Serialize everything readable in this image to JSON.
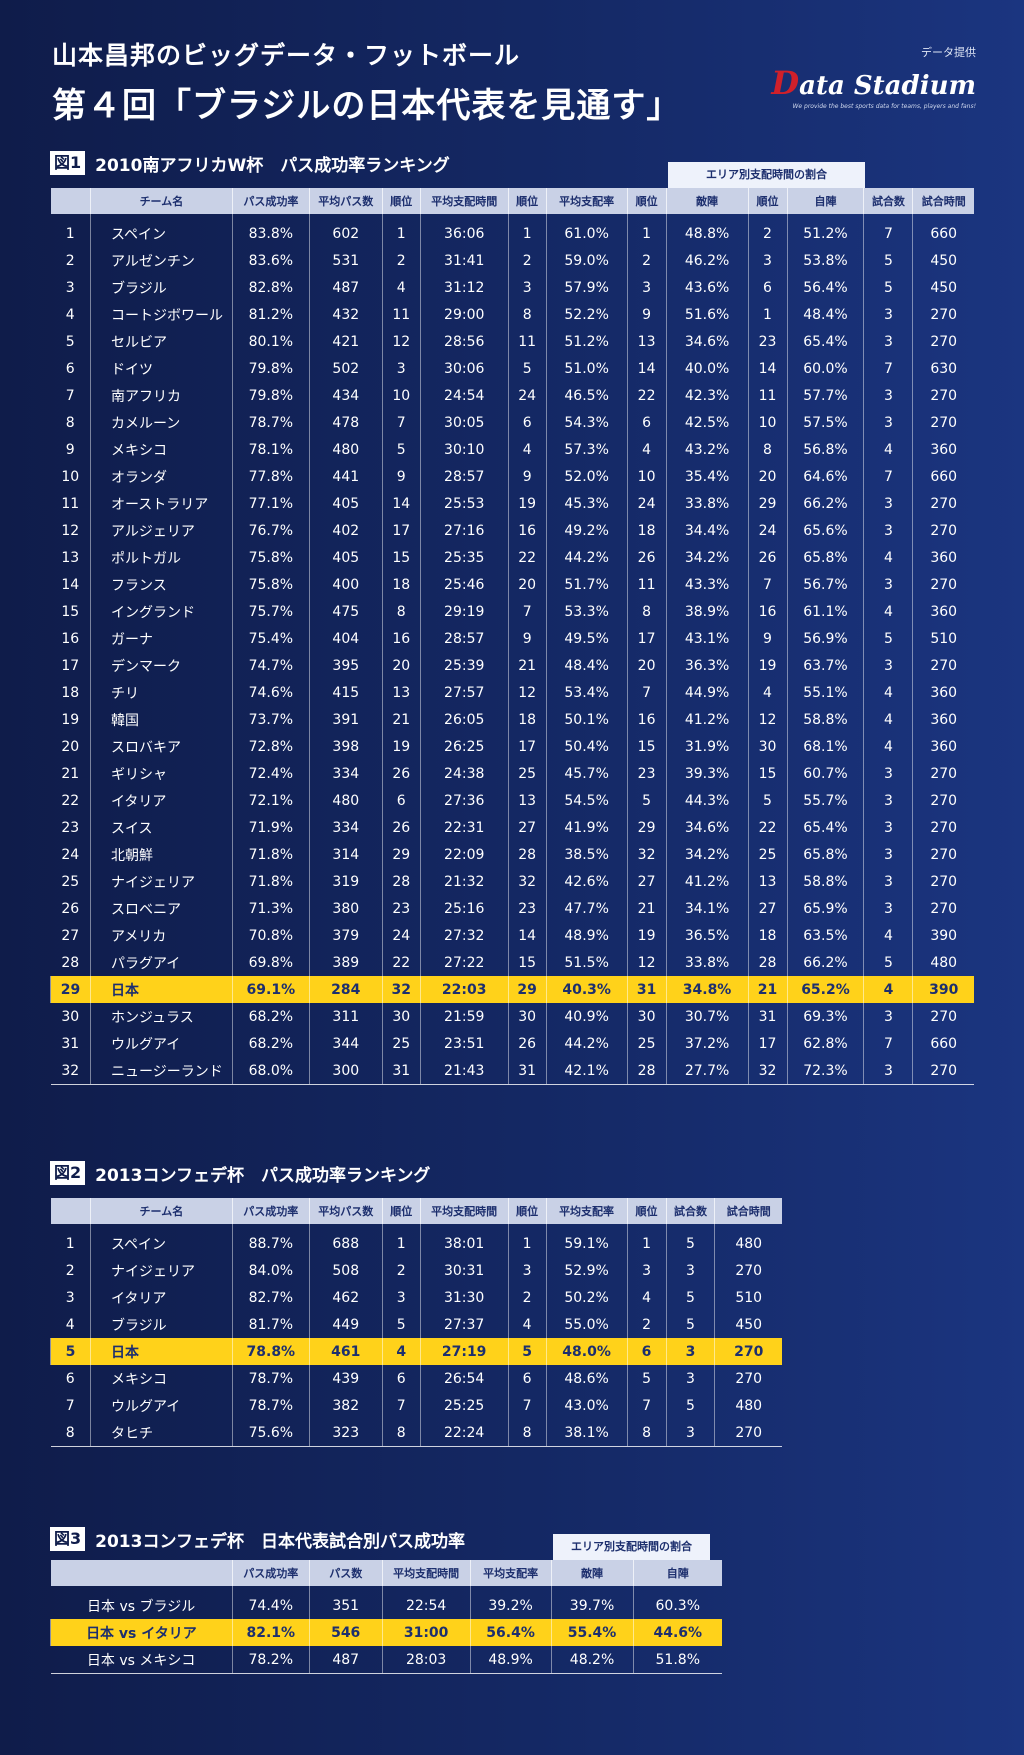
{
  "header": {
    "subtitle": "山本昌邦のビッグデータ・フットボール",
    "title": "第４回「ブラジルの日本代表を見通す」",
    "provider_label": "データ提供",
    "logo_initial": "D",
    "logo_rest": "ata Stadium",
    "logo_tagline": "We provide the best sports data for teams, players and fans!"
  },
  "fig1": {
    "badge": "図1",
    "title": "2010南アフリカW杯　パス成功率ランキング",
    "area_header": "エリア別支配時間の割合",
    "columns": [
      "",
      "チーム名",
      "パス成功率",
      "平均パス数",
      "順位",
      "平均支配時間",
      "順位",
      "平均支配率",
      "順位",
      "敵陣",
      "順位",
      "自陣",
      "試合数",
      "試合時間"
    ],
    "rows": [
      [
        "1",
        "スペイン",
        "83.8%",
        "602",
        "1",
        "36:06",
        "1",
        "61.0%",
        "1",
        "48.8%",
        "2",
        "51.2%",
        "7",
        "660"
      ],
      [
        "2",
        "アルゼンチン",
        "83.6%",
        "531",
        "2",
        "31:41",
        "2",
        "59.0%",
        "2",
        "46.2%",
        "3",
        "53.8%",
        "5",
        "450"
      ],
      [
        "3",
        "ブラジル",
        "82.8%",
        "487",
        "4",
        "31:12",
        "3",
        "57.9%",
        "3",
        "43.6%",
        "6",
        "56.4%",
        "5",
        "450"
      ],
      [
        "4",
        "コートジボワール",
        "81.2%",
        "432",
        "11",
        "29:00",
        "8",
        "52.2%",
        "9",
        "51.6%",
        "1",
        "48.4%",
        "3",
        "270"
      ],
      [
        "5",
        "セルビア",
        "80.1%",
        "421",
        "12",
        "28:56",
        "11",
        "51.2%",
        "13",
        "34.6%",
        "23",
        "65.4%",
        "3",
        "270"
      ],
      [
        "6",
        "ドイツ",
        "79.8%",
        "502",
        "3",
        "30:06",
        "5",
        "51.0%",
        "14",
        "40.0%",
        "14",
        "60.0%",
        "7",
        "630"
      ],
      [
        "7",
        "南アフリカ",
        "79.8%",
        "434",
        "10",
        "24:54",
        "24",
        "46.5%",
        "22",
        "42.3%",
        "11",
        "57.7%",
        "3",
        "270"
      ],
      [
        "8",
        "カメルーン",
        "78.7%",
        "478",
        "7",
        "30:05",
        "6",
        "54.3%",
        "6",
        "42.5%",
        "10",
        "57.5%",
        "3",
        "270"
      ],
      [
        "9",
        "メキシコ",
        "78.1%",
        "480",
        "5",
        "30:10",
        "4",
        "57.3%",
        "4",
        "43.2%",
        "8",
        "56.8%",
        "4",
        "360"
      ],
      [
        "10",
        "オランダ",
        "77.8%",
        "441",
        "9",
        "28:57",
        "9",
        "52.0%",
        "10",
        "35.4%",
        "20",
        "64.6%",
        "7",
        "660"
      ],
      [
        "11",
        "オーストラリア",
        "77.1%",
        "405",
        "14",
        "25:53",
        "19",
        "45.3%",
        "24",
        "33.8%",
        "29",
        "66.2%",
        "3",
        "270"
      ],
      [
        "12",
        "アルジェリア",
        "76.7%",
        "402",
        "17",
        "27:16",
        "16",
        "49.2%",
        "18",
        "34.4%",
        "24",
        "65.6%",
        "3",
        "270"
      ],
      [
        "13",
        "ポルトガル",
        "75.8%",
        "405",
        "15",
        "25:35",
        "22",
        "44.2%",
        "26",
        "34.2%",
        "26",
        "65.8%",
        "4",
        "360"
      ],
      [
        "14",
        "フランス",
        "75.8%",
        "400",
        "18",
        "25:46",
        "20",
        "51.7%",
        "11",
        "43.3%",
        "7",
        "56.7%",
        "3",
        "270"
      ],
      [
        "15",
        "イングランド",
        "75.7%",
        "475",
        "8",
        "29:19",
        "7",
        "53.3%",
        "8",
        "38.9%",
        "16",
        "61.1%",
        "4",
        "360"
      ],
      [
        "16",
        "ガーナ",
        "75.4%",
        "404",
        "16",
        "28:57",
        "9",
        "49.5%",
        "17",
        "43.1%",
        "9",
        "56.9%",
        "5",
        "510"
      ],
      [
        "17",
        "デンマーク",
        "74.7%",
        "395",
        "20",
        "25:39",
        "21",
        "48.4%",
        "20",
        "36.3%",
        "19",
        "63.7%",
        "3",
        "270"
      ],
      [
        "18",
        "チリ",
        "74.6%",
        "415",
        "13",
        "27:57",
        "12",
        "53.4%",
        "7",
        "44.9%",
        "4",
        "55.1%",
        "4",
        "360"
      ],
      [
        "19",
        "韓国",
        "73.7%",
        "391",
        "21",
        "26:05",
        "18",
        "50.1%",
        "16",
        "41.2%",
        "12",
        "58.8%",
        "4",
        "360"
      ],
      [
        "20",
        "スロバキア",
        "72.8%",
        "398",
        "19",
        "26:25",
        "17",
        "50.4%",
        "15",
        "31.9%",
        "30",
        "68.1%",
        "4",
        "360"
      ],
      [
        "21",
        "ギリシャ",
        "72.4%",
        "334",
        "26",
        "24:38",
        "25",
        "45.7%",
        "23",
        "39.3%",
        "15",
        "60.7%",
        "3",
        "270"
      ],
      [
        "22",
        "イタリア",
        "72.1%",
        "480",
        "6",
        "27:36",
        "13",
        "54.5%",
        "5",
        "44.3%",
        "5",
        "55.7%",
        "3",
        "270"
      ],
      [
        "23",
        "スイス",
        "71.9%",
        "334",
        "26",
        "22:31",
        "27",
        "41.9%",
        "29",
        "34.6%",
        "22",
        "65.4%",
        "3",
        "270"
      ],
      [
        "24",
        "北朝鮮",
        "71.8%",
        "314",
        "29",
        "22:09",
        "28",
        "38.5%",
        "32",
        "34.2%",
        "25",
        "65.8%",
        "3",
        "270"
      ],
      [
        "25",
        "ナイジェリア",
        "71.8%",
        "319",
        "28",
        "21:32",
        "32",
        "42.6%",
        "27",
        "41.2%",
        "13",
        "58.8%",
        "3",
        "270"
      ],
      [
        "26",
        "スロベニア",
        "71.3%",
        "380",
        "23",
        "25:16",
        "23",
        "47.7%",
        "21",
        "34.1%",
        "27",
        "65.9%",
        "3",
        "270"
      ],
      [
        "27",
        "アメリカ",
        "70.8%",
        "379",
        "24",
        "27:32",
        "14",
        "48.9%",
        "19",
        "36.5%",
        "18",
        "63.5%",
        "4",
        "390"
      ],
      [
        "28",
        "パラグアイ",
        "69.8%",
        "389",
        "22",
        "27:22",
        "15",
        "51.5%",
        "12",
        "33.8%",
        "28",
        "66.2%",
        "5",
        "480"
      ],
      [
        "29",
        "日本",
        "69.1%",
        "284",
        "32",
        "22:03",
        "29",
        "40.3%",
        "31",
        "34.8%",
        "21",
        "65.2%",
        "4",
        "390"
      ],
      [
        "30",
        "ホンジュラス",
        "68.2%",
        "311",
        "30",
        "21:59",
        "30",
        "40.9%",
        "30",
        "30.7%",
        "31",
        "69.3%",
        "3",
        "270"
      ],
      [
        "31",
        "ウルグアイ",
        "68.2%",
        "344",
        "25",
        "23:51",
        "26",
        "44.2%",
        "25",
        "37.2%",
        "17",
        "62.8%",
        "7",
        "660"
      ],
      [
        "32",
        "ニュージーランド",
        "68.0%",
        "300",
        "31",
        "21:43",
        "31",
        "42.1%",
        "28",
        "27.7%",
        "32",
        "72.3%",
        "3",
        "270"
      ]
    ]
  },
  "fig2": {
    "badge": "図2",
    "title": "2013コンフェデ杯　パス成功率ランキング",
    "columns": [
      "",
      "チーム名",
      "パス成功率",
      "平均パス数",
      "順位",
      "平均支配時間",
      "順位",
      "平均支配率",
      "順位",
      "試合数",
      "試合時間"
    ],
    "rows": [
      [
        "1",
        "スペイン",
        "88.7%",
        "688",
        "1",
        "38:01",
        "1",
        "59.1%",
        "1",
        "5",
        "480"
      ],
      [
        "2",
        "ナイジェリア",
        "84.0%",
        "508",
        "2",
        "30:31",
        "3",
        "52.9%",
        "3",
        "3",
        "270"
      ],
      [
        "3",
        "イタリア",
        "82.7%",
        "462",
        "3",
        "31:30",
        "2",
        "50.2%",
        "4",
        "5",
        "510"
      ],
      [
        "4",
        "ブラジル",
        "81.7%",
        "449",
        "5",
        "27:37",
        "4",
        "55.0%",
        "2",
        "5",
        "450"
      ],
      [
        "5",
        "日本",
        "78.8%",
        "461",
        "4",
        "27:19",
        "5",
        "48.0%",
        "6",
        "3",
        "270"
      ],
      [
        "6",
        "メキシコ",
        "78.7%",
        "439",
        "6",
        "26:54",
        "6",
        "48.6%",
        "5",
        "3",
        "270"
      ],
      [
        "7",
        "ウルグアイ",
        "78.7%",
        "382",
        "7",
        "25:25",
        "7",
        "43.0%",
        "7",
        "5",
        "480"
      ],
      [
        "8",
        "タヒチ",
        "75.6%",
        "323",
        "8",
        "22:24",
        "8",
        "38.1%",
        "8",
        "3",
        "270"
      ]
    ]
  },
  "fig3": {
    "badge": "図3",
    "title": "2013コンフェデ杯　日本代表試合別パス成功率",
    "area_header": "エリア別支配時間の割合",
    "columns": [
      "",
      "パス成功率",
      "パス数",
      "平均支配時間",
      "平均支配率",
      "敵陣",
      "自陣"
    ],
    "rows": [
      [
        "日本 vs ブラジル",
        "74.4%",
        "351",
        "22:54",
        "39.2%",
        "39.7%",
        "60.3%"
      ],
      [
        "日本 vs イタリア",
        "82.1%",
        "546",
        "31:00",
        "56.4%",
        "55.4%",
        "44.6%"
      ],
      [
        "日本 vs メキシコ",
        "78.2%",
        "487",
        "28:03",
        "48.9%",
        "48.2%",
        "51.8%"
      ]
    ]
  }
}
